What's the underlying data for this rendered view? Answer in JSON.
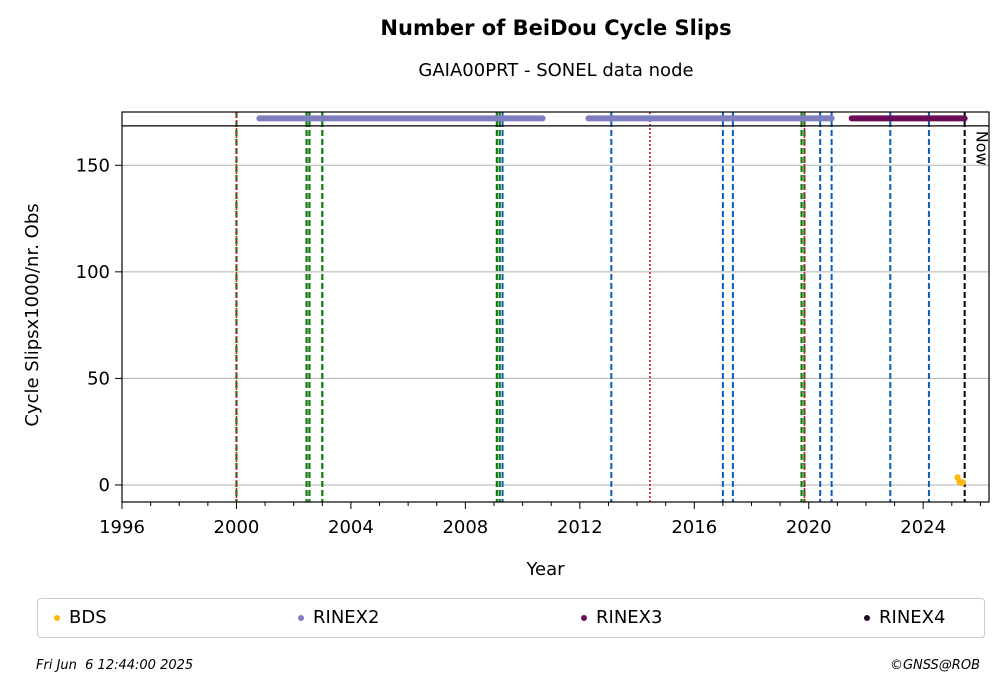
{
  "title": "Number of BeiDou Cycle Slips",
  "subtitle": "GAIA00PRT - SONEL data node",
  "footer": {
    "timestamp": "Fri Jun  6 12:44:00 2025",
    "copyright": "©GNSS@ROB"
  },
  "chart_data": {
    "type": "scatter",
    "title": "Number of BeiDou Cycle Slips",
    "subtitle": "GAIA00PRT - SONEL data node",
    "xlabel": "Year",
    "ylabel": "Cycle Slipsx1000/nr. Obs",
    "xlim": [
      1996,
      2026.3
    ],
    "ylim": [
      -8,
      175
    ],
    "x_ticks": [
      1996,
      2000,
      2004,
      2008,
      2012,
      2016,
      2020,
      2024
    ],
    "y_ticks": [
      0,
      50,
      100,
      150
    ],
    "grid": "horizontal",
    "legend_position": "bottom",
    "series": [
      {
        "name": "BDS",
        "color": "#fbb813",
        "x": [
          2025.2,
          2025.27,
          2025.33,
          2025.38
        ],
        "y": [
          3.5,
          1.5,
          1.0,
          1.2
        ]
      },
      {
        "name": "RINEX2",
        "color": "#7f7fbf",
        "ranges": [
          [
            2000.8,
            2010.7
          ],
          [
            2012.3,
            2020.8
          ]
        ],
        "y": 172
      },
      {
        "name": "RINEX3",
        "color": "#6a0d59",
        "ranges": [
          [
            2021.5,
            2025.45
          ]
        ],
        "y": 172
      },
      {
        "name": "RINEX4",
        "color": "#1a0a1e",
        "ranges": [],
        "y": 172
      }
    ],
    "vertical_lines": {
      "red_dotted": [
        2000.0,
        2014.45,
        2019.85
      ],
      "green_dashed": [
        2000.0,
        2002.45,
        2002.55,
        2003.0,
        2009.1,
        2009.2,
        2019.75,
        2019.85
      ],
      "blue_dashed": [
        2009.3,
        2013.1,
        2017.0,
        2017.35,
        2020.4,
        2020.8,
        2022.85,
        2024.2
      ],
      "now": 2025.45
    },
    "now_label": "Now"
  }
}
